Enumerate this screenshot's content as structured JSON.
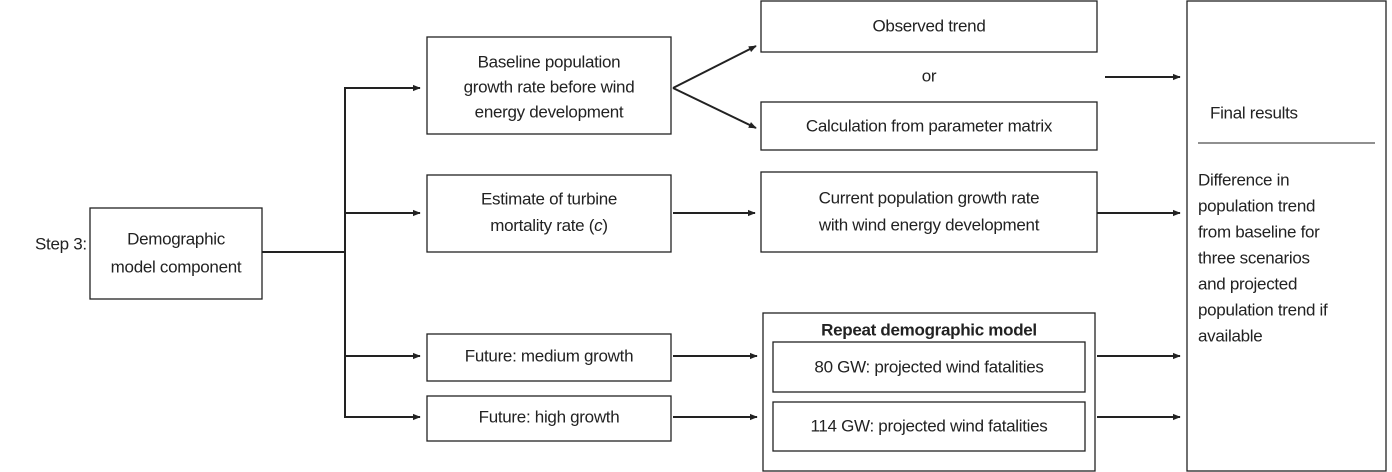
{
  "step": "Step 3:",
  "component": [
    "Demographic",
    "model component"
  ],
  "baseline": [
    "Baseline population",
    "growth rate before wind",
    "energy development"
  ],
  "estimate": {
    "lines": [
      "Estimate of turbine",
      "mortality rate ("
    ],
    "italic": "c",
    "close": ")"
  },
  "observed": "Observed trend",
  "or": "or",
  "calculation": "Calculation from parameter matrix",
  "current": [
    "Current population growth rate",
    "with wind energy development"
  ],
  "medium": "Future: medium growth",
  "high": "Future: high growth",
  "repeat": {
    "title": "Repeat demographic model",
    "gw80": "80 GW: projected wind fatalities",
    "gw114": "114 GW: projected wind fatalities"
  },
  "final": {
    "title": "Final results",
    "lines": [
      "Difference in",
      "population trend",
      "from baseline for",
      "three scenarios",
      "and projected",
      "population trend if",
      "available"
    ]
  }
}
